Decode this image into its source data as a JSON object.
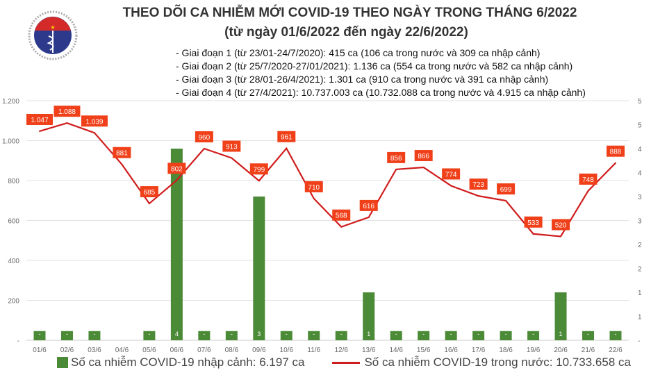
{
  "title": "THEO DÕI CA NHIỄM MỚI COVID-19 THEO NGÀY TRONG THÁNG 6/2022",
  "subtitle": "(từ ngày 01/6/2022 đến ngày 22/6/2022)",
  "notes": [
    "- Giai đoạn 1 (từ 23/01-24/7/2020): 415 ca (106 ca trong nước và 309 ca nhập cảnh)",
    "- Giai đoạn 2 (từ 25/7/2020-27/01/2021): 1.136 ca (554 ca trong nước và 582 ca nhập cảnh)",
    "- Giai đoạn 3 (từ 28/01-26/4/2021): 1.301 ca (910 ca trong nước và 391 ca nhập cảnh)",
    "- Giai đoạn 4 (từ 27/4/2021): 10.737.003 ca (10.732.088 ca trong nước và 4.915 ca nhập cảnh)"
  ],
  "logo": {
    "top_text": "BỘ Y TẾ",
    "bottom_text": "MINISTRY OF HEALTH"
  },
  "chart_data": {
    "type": "bar+line",
    "categories": [
      "01/6",
      "02/6",
      "03/6",
      "04/6",
      "05/6",
      "06/6",
      "07/6",
      "08/6",
      "09/6",
      "10/6",
      "11/6",
      "12/6",
      "13/6",
      "14/6",
      "15/6",
      "16/6",
      "17/6",
      "18/6",
      "19/6",
      "20/6",
      "21/6",
      "22/6"
    ],
    "series": [
      {
        "name": "Số ca nhiễm COVID-19 nhập cảnh: 6.197 ca",
        "type": "bar",
        "axis": "right",
        "color": "#4b8a36",
        "values": [
          0,
          0,
          0,
          null,
          0,
          4,
          0,
          0,
          3,
          0,
          0,
          0,
          1,
          0,
          0,
          0,
          0,
          0,
          0,
          1,
          0,
          0
        ],
        "labels": [
          "-",
          "-",
          "-",
          "",
          "-",
          "4",
          "-",
          "-",
          "3",
          "-",
          "-",
          "-",
          "1",
          "-",
          "-",
          "-",
          "-",
          "-",
          "-",
          "1",
          "-",
          "-"
        ]
      },
      {
        "name": "Số ca nhiễm COVID-19 trong nước: 10.733.658 ca",
        "type": "line",
        "axis": "left",
        "color": "#d01c1c",
        "values": [
          1047,
          1088,
          1039,
          881,
          685,
          802,
          960,
          913,
          799,
          961,
          710,
          568,
          616,
          856,
          866,
          774,
          723,
          699,
          533,
          520,
          748,
          888
        ],
        "labels": [
          "1.047",
          "1.088",
          "1.039",
          "881",
          "685",
          "802",
          "960",
          "913",
          "799",
          "961",
          "710",
          "568",
          "616",
          "856",
          "866",
          "774",
          "723",
          "699",
          "533",
          "520",
          "748",
          "888"
        ]
      }
    ],
    "y_left": {
      "ylim": [
        0,
        1200
      ],
      "ticks": [
        "-",
        "200",
        "400",
        "600",
        "800",
        "1.000",
        "1.200"
      ]
    },
    "y_right": {
      "ylim": [
        0,
        5
      ],
      "ticks": [
        "-",
        "1",
        "1",
        "2",
        "2",
        "3",
        "3",
        "4",
        "4",
        "5",
        "5"
      ]
    },
    "label_color": "#f0401a",
    "grid": true,
    "legend": "bottom"
  }
}
